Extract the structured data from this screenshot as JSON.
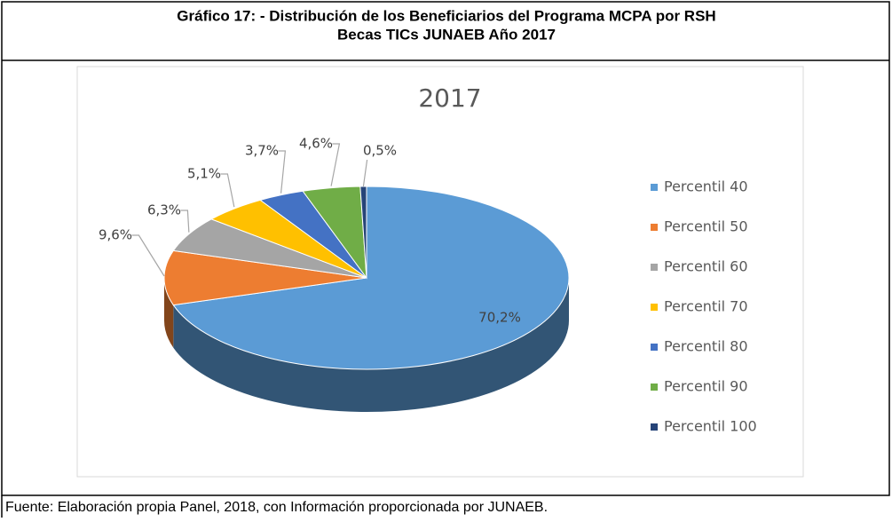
{
  "header": {
    "lines": [
      "Gráfico 17: - Distribución de los Beneficiarios del Programa MCPA por RSH",
      "Becas TICs JUNAEB Año 2017"
    ]
  },
  "chart_data": {
    "type": "pie",
    "title": "2017",
    "categories": [
      "Percentil 40",
      "Percentil 50",
      "Percentil 60",
      "Percentil 70",
      "Percentil 80",
      "Percentil 90",
      "Percentil 100"
    ],
    "values": [
      70.2,
      9.6,
      6.3,
      5.1,
      3.7,
      4.6,
      0.5
    ],
    "value_labels": [
      "70,2%",
      "9,6%",
      "6,3%",
      "5,1%",
      "3,7%",
      "4,6%",
      "0,5%"
    ],
    "colors": [
      "#5b9bd5",
      "#ed7d31",
      "#a5a5a5",
      "#ffc000",
      "#4472c4",
      "#70ad47",
      "#264478"
    ],
    "legend": "right"
  },
  "source": "Fuente: Elaboración propia Panel, 2018, con Información proporcionada por JUNAEB."
}
